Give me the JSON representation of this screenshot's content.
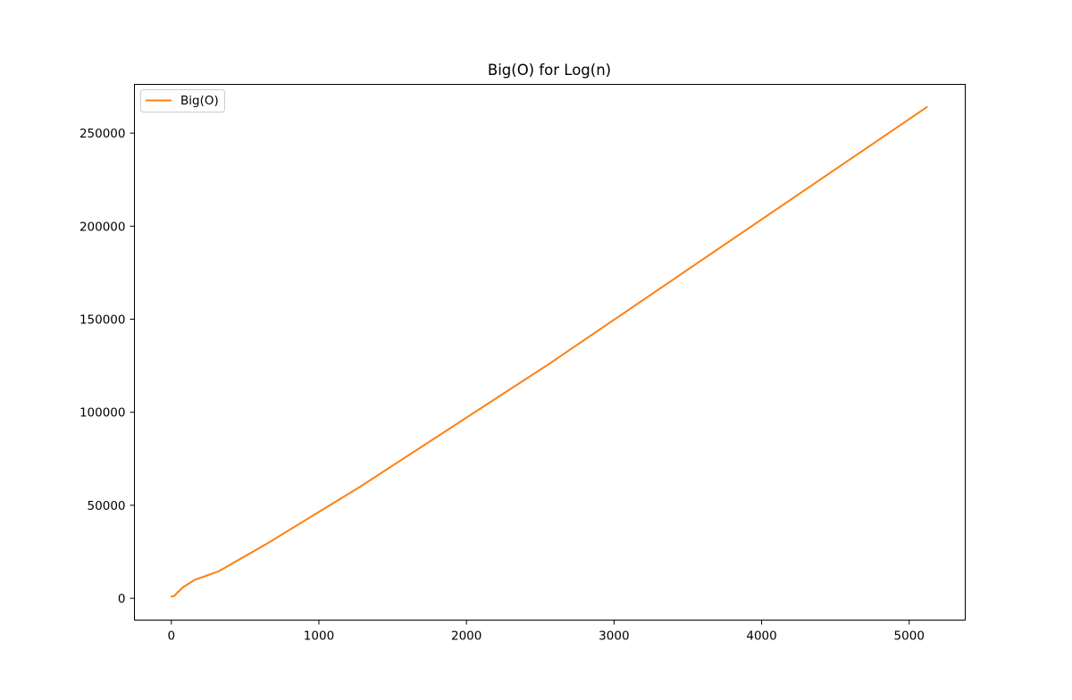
{
  "chart_data": {
    "type": "line",
    "title": "Big(O) for Log(n)",
    "xlabel": "",
    "ylabel": "",
    "xlim": [
      -250,
      5380
    ],
    "ylim": [
      -11700,
      276200
    ],
    "xticks": [
      0,
      1000,
      2000,
      3000,
      4000,
      5000
    ],
    "yticks": [
      0,
      50000,
      100000,
      150000,
      200000,
      250000
    ],
    "xtick_labels": [
      "0",
      "1000",
      "2000",
      "3000",
      "4000",
      "5000"
    ],
    "ytick_labels": [
      "0",
      "50000",
      "100000",
      "150000",
      "200000",
      "250000"
    ],
    "grid": false,
    "legend_position": "top-left",
    "series": [
      {
        "name": "Big(O)",
        "color": "#ff7f0e",
        "x": [
          1,
          20,
          40,
          80,
          160,
          320,
          640,
          1280,
          2560,
          5120
        ],
        "y": [
          1000,
          1300,
          3000,
          6000,
          10000,
          14500,
          29000,
          60000,
          126000,
          264000
        ]
      }
    ]
  }
}
